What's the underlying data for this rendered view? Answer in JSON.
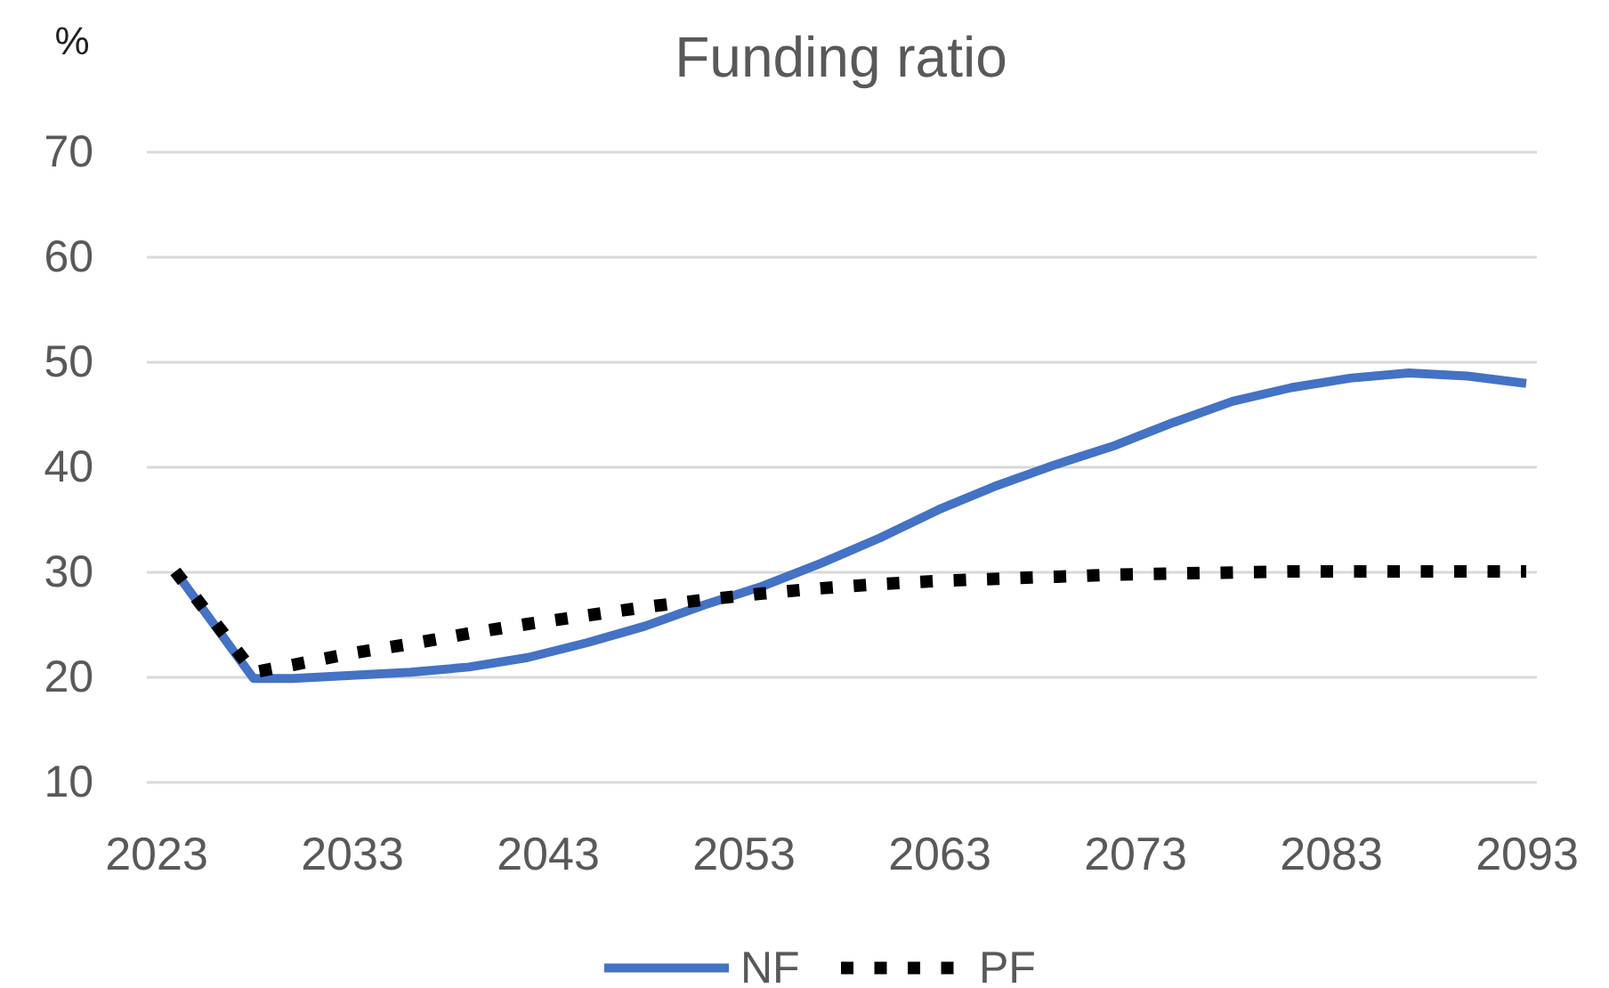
{
  "chart_data": {
    "type": "line",
    "title": "Funding ratio",
    "ylabel": "%",
    "xlim": [
      2022.5,
      2093.5
    ],
    "xticks": [
      2023,
      2033,
      2043,
      2053,
      2063,
      2073,
      2083,
      2093
    ],
    "ylim": [
      10,
      70
    ],
    "yticks": [
      10,
      20,
      30,
      40,
      50,
      60,
      70
    ],
    "grid": "y",
    "legend": "bottom",
    "x": [
      2024,
      2028,
      2030,
      2033,
      2036,
      2039,
      2042,
      2045,
      2048,
      2051,
      2054,
      2057,
      2060,
      2063,
      2066,
      2069,
      2072,
      2075,
      2078,
      2081,
      2084,
      2087,
      2090,
      2093
    ],
    "series": [
      {
        "name": "NF",
        "color": "#4472c4",
        "line_style": "solid",
        "values": [
          30,
          19.8,
          19.8,
          20.1,
          20.4,
          20.9,
          21.8,
          23.2,
          24.8,
          26.8,
          28.6,
          30.8,
          33.2,
          35.9,
          38.2,
          40.2,
          42.0,
          44.2,
          46.2,
          47.5,
          48.4,
          48.9,
          48.6,
          47.9
        ]
      },
      {
        "name": "PF",
        "color": "#000000",
        "line_style": "dotted",
        "values": [
          30,
          20.4,
          21.1,
          22.2,
          23.1,
          24.1,
          25.0,
          25.8,
          26.6,
          27.3,
          27.9,
          28.4,
          28.8,
          29.1,
          29.3,
          29.5,
          29.7,
          29.8,
          29.9,
          30.0,
          30.0,
          30.0,
          30.0,
          30.0
        ]
      }
    ]
  }
}
